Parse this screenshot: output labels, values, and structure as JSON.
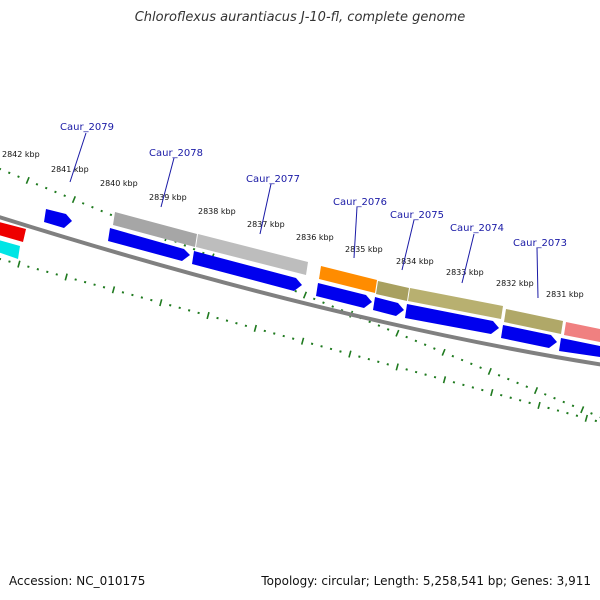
{
  "title": "Chloroflexus aurantiacus J-10-fl, complete genome",
  "footer": {
    "accession": "Accession: NC_010175",
    "summary": "Topology: circular; Length: 5,258,541 bp; Genes: 3,911"
  },
  "colors": {
    "backbone": "#808080",
    "tick": "#1f7a1f",
    "cds_forward": "#0000ee",
    "gene_label": "#1a1aa6"
  },
  "kbp_labels": [
    "2842 kbp",
    "2841 kbp",
    "2840 kbp",
    "2839 kbp",
    "2838 kbp",
    "2837 kbp",
    "2836 kbp",
    "2835 kbp",
    "2834 kbp",
    "2833 kbp",
    "2832 kbp",
    "2831 kbp"
  ],
  "gene_labels": [
    "Caur_2079",
    "Caur_2078",
    "Caur_2077",
    "Caur_2076",
    "Caur_2075",
    "Caur_2074",
    "Caur_2073"
  ]
}
